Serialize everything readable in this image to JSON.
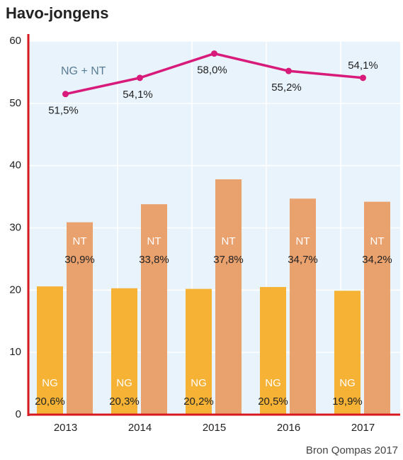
{
  "chart_data": {
    "type": "bar",
    "title": "Havo-jongens",
    "source": "Bron Qompas 2017",
    "categories": [
      "2013",
      "2014",
      "2015",
      "2016",
      "2017"
    ],
    "series": [
      {
        "name": "NG",
        "color": "#f5b234",
        "values": [
          20.6,
          20.3,
          20.2,
          20.5,
          19.9
        ],
        "value_labels": [
          "20,6%",
          "20,3%",
          "20,2%",
          "20,5%",
          "19,9%"
        ]
      },
      {
        "name": "NT",
        "color": "#e9a16e",
        "values": [
          30.9,
          33.8,
          37.8,
          34.7,
          34.2
        ],
        "value_labels": [
          "30,9%",
          "33,8%",
          "37,8%",
          "34,7%",
          "34,2%"
        ]
      }
    ],
    "line": {
      "type": "line",
      "name": "NG + NT",
      "color": "#d81b7b",
      "values": [
        51.5,
        54.1,
        58.0,
        55.2,
        54.1
      ],
      "value_labels": [
        "51,5%",
        "54,1%",
        "58,0%",
        "55,2%",
        "54,1%"
      ]
    },
    "ylim": [
      0,
      60
    ],
    "yticks": [
      0,
      10,
      20,
      30,
      40,
      50,
      60
    ],
    "grid": true
  }
}
